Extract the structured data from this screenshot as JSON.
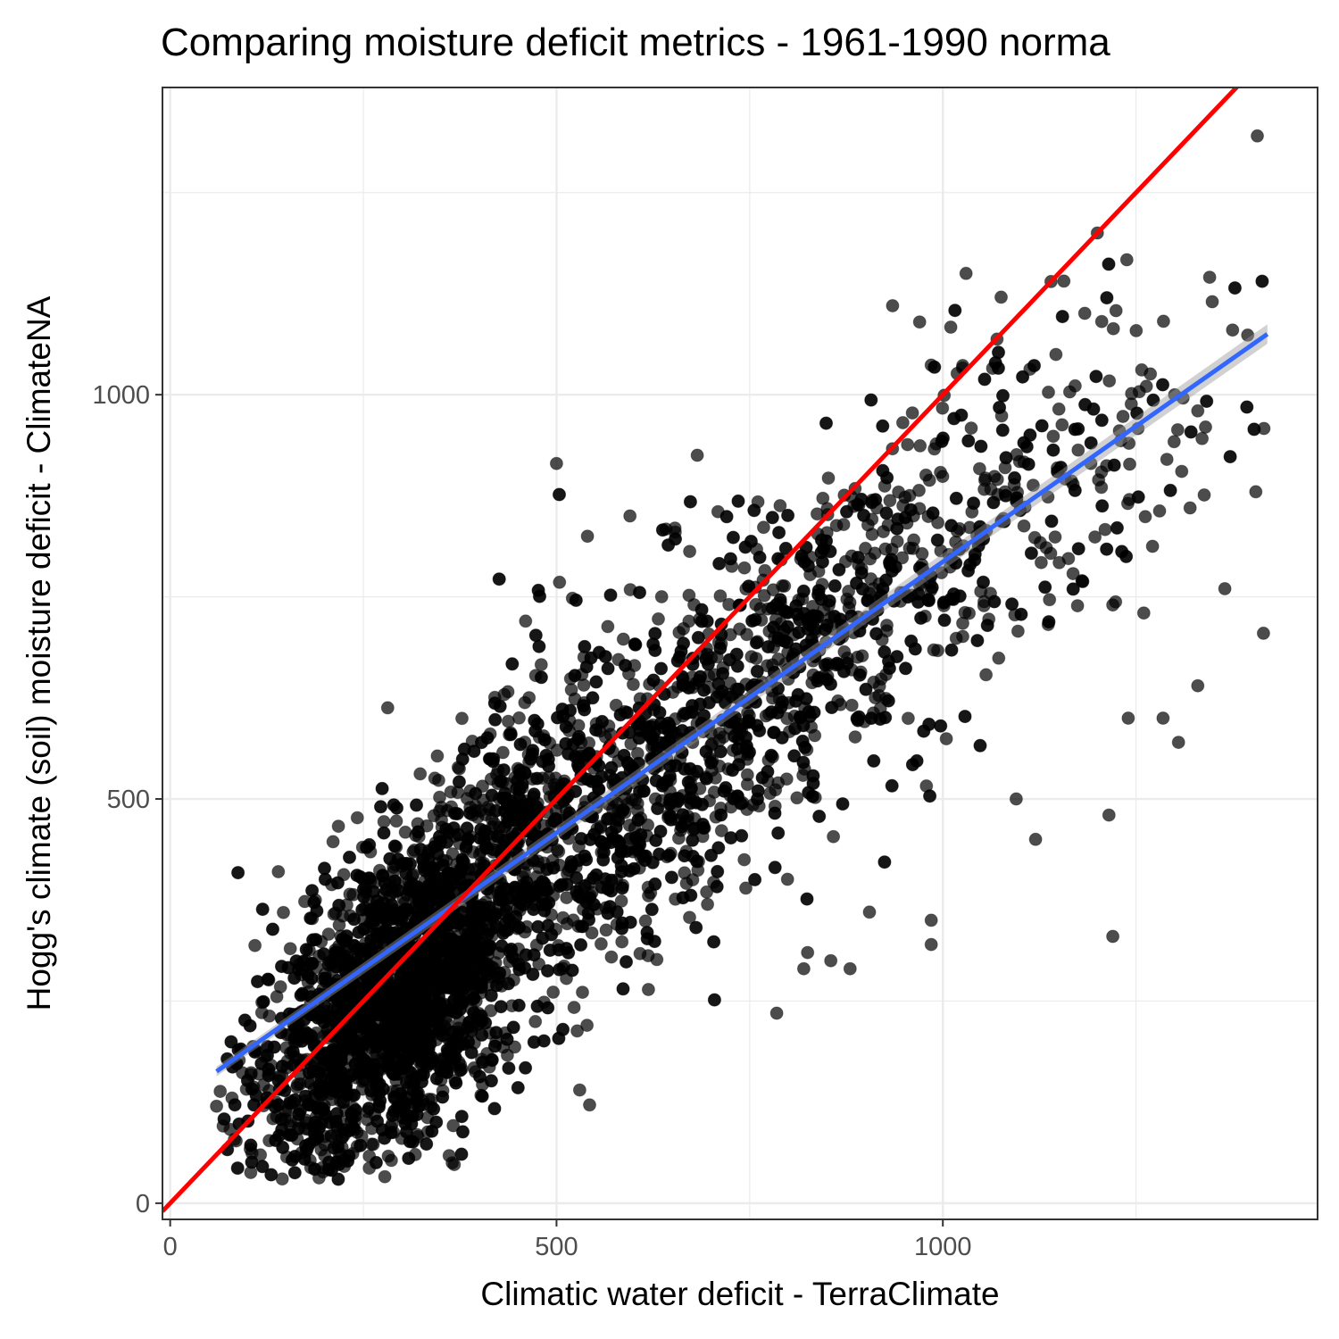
{
  "chart_data": {
    "type": "scatter",
    "title": "Comparing moisture deficit metrics - 1961-1990 norma",
    "xlabel": "Climatic water deficit - TerraClimate",
    "ylabel": "Hogg's climate (soil) moisture deficit - ClimateNA",
    "xlim": [
      -10,
      1485
    ],
    "ylim": [
      -20,
      1380
    ],
    "x_ticks": [
      0,
      500,
      1000
    ],
    "x_tick_labels": [
      "0",
      "500",
      "1000"
    ],
    "y_ticks": [
      0,
      500,
      1000
    ],
    "y_tick_labels": [
      "0",
      "500",
      "1000"
    ],
    "x_minor_ticks": [
      250,
      750,
      1250
    ],
    "y_minor_ticks": [
      250,
      750,
      1250
    ],
    "grid": true,
    "legend": "none",
    "colors": {
      "points": "#000000",
      "fit_line": "#3366ff",
      "fit_ribbon": "#999999",
      "identity_line": "#ff0000"
    },
    "lines": [
      {
        "kind": "linear-fit",
        "color": "#3366ff",
        "x": [
          60,
          1420
        ],
        "y": [
          163,
          1075
        ]
      },
      {
        "kind": "one-to-one",
        "color": "#ff0000",
        "x": [
          -10,
          1385
        ],
        "y": [
          -10,
          1385
        ]
      }
    ],
    "point_cloud": {
      "description_count": 10000,
      "x_range": [
        55,
        1420
      ],
      "y_range": [
        28,
        1320
      ],
      "trend_slope": 0.67,
      "trend_intercept": 123
    },
    "points": [
      [
        1407,
        1320
      ],
      [
        1405,
        880
      ],
      [
        1415,
        705
      ],
      [
        1365,
        760
      ],
      [
        1375,
        1080
      ],
      [
        1200,
        1200
      ],
      [
        1140,
        1140
      ],
      [
        1030,
        1150
      ],
      [
        935,
        1110
      ],
      [
        970,
        1090
      ],
      [
        1300,
        1000
      ],
      [
        1330,
        980
      ],
      [
        1340,
        960
      ],
      [
        1290,
        920
      ],
      [
        1320,
        860
      ],
      [
        1305,
        570
      ],
      [
        1330,
        640
      ],
      [
        1285,
        600
      ],
      [
        1220,
        740
      ],
      [
        1240,
        600
      ],
      [
        1215,
        480
      ],
      [
        1220,
        330
      ],
      [
        1120,
        450
      ],
      [
        1095,
        500
      ],
      [
        985,
        320
      ],
      [
        985,
        350
      ],
      [
        905,
        360
      ],
      [
        825,
        310
      ],
      [
        785,
        235
      ],
      [
        820,
        290
      ],
      [
        855,
        300
      ],
      [
        880,
        290
      ],
      [
        530,
        140
      ],
      [
        365,
        50
      ],
      [
        145,
        30
      ],
      [
        500,
        915
      ],
      [
        595,
        850
      ],
      [
        540,
        825
      ],
      [
        460,
        720
      ],
      [
        300,
        420
      ],
      [
        140,
        410
      ],
      [
        60,
        120
      ],
      [
        80,
        130
      ],
      [
        1260,
        730
      ],
      [
        1180,
        770
      ]
    ]
  }
}
